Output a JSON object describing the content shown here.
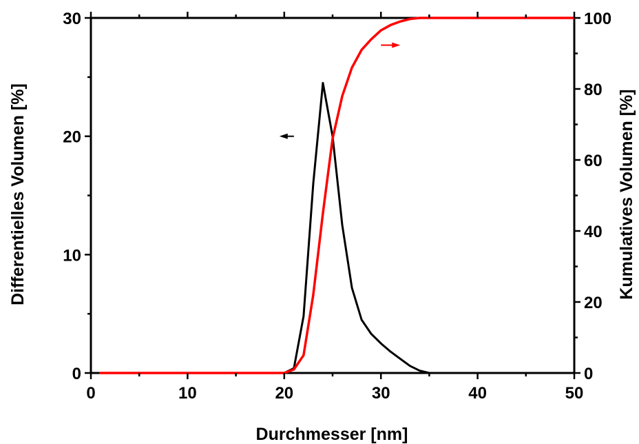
{
  "chart_data": {
    "type": "line",
    "xlabel": "Durchmesser [nm]",
    "ylabel_left": "Differentielles Volumen [%]",
    "ylabel_right": "Kumulatives Volumen [%]",
    "xlim": [
      0,
      50
    ],
    "ylim_left": [
      0,
      30
    ],
    "ylim_right": [
      0,
      100
    ],
    "x_ticks": [
      0,
      10,
      20,
      30,
      40,
      50
    ],
    "y_left_ticks": [
      0,
      10,
      20,
      30
    ],
    "y_right_ticks": [
      0,
      20,
      40,
      60,
      80,
      100
    ],
    "grid": false,
    "legend": "none",
    "series": [
      {
        "axis": "left",
        "color": "#000000",
        "x": [
          1,
          20,
          21,
          22,
          23,
          24,
          25,
          26,
          27,
          28,
          29,
          30,
          31,
          32,
          33,
          34,
          35
        ],
        "y": [
          0,
          0,
          0.4,
          4.8,
          16,
          24.5,
          20,
          12.5,
          7.2,
          4.5,
          3.3,
          2.5,
          1.8,
          1.2,
          0.6,
          0.2,
          0
        ]
      },
      {
        "axis": "right",
        "color": "#ff0000",
        "x": [
          1,
          20,
          21,
          22,
          23,
          24,
          25,
          26,
          27,
          28,
          29,
          30,
          31,
          32,
          33,
          34,
          35,
          50
        ],
        "y": [
          0,
          0,
          1,
          5,
          22,
          45,
          66,
          78,
          86,
          91,
          94,
          96.5,
          98,
          99,
          99.7,
          100,
          100,
          100
        ]
      }
    ],
    "annotations": [
      {
        "type": "arrow",
        "direction": "left",
        "color": "#000000",
        "x": [
          21,
          19.5
        ],
        "y_left": 20
      },
      {
        "type": "arrow",
        "direction": "right",
        "color": "#ff0000",
        "x": [
          30,
          32
        ],
        "y_left": 27.7
      }
    ]
  }
}
